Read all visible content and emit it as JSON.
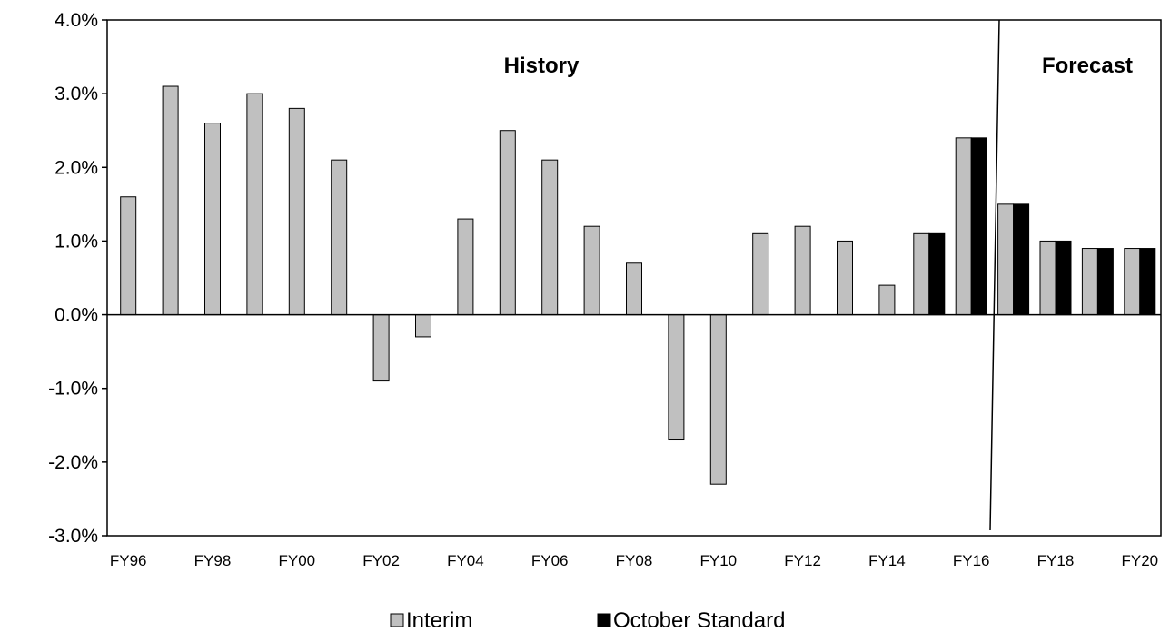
{
  "chart_data": {
    "type": "bar",
    "categories": [
      "FY96",
      "FY97",
      "FY98",
      "FY99",
      "FY00",
      "FY01",
      "FY02",
      "FY03",
      "FY04",
      "FY05",
      "FY06",
      "FY07",
      "FY08",
      "FY09",
      "FY10",
      "FY11",
      "FY12",
      "FY13",
      "FY14",
      "FY15",
      "FY16",
      "FY17",
      "FY18",
      "FY19",
      "FY20"
    ],
    "x_tick_labels": [
      "FY96",
      "FY98",
      "FY00",
      "FY02",
      "FY04",
      "FY06",
      "FY08",
      "FY10",
      "FY12",
      "FY14",
      "FY16",
      "FY18",
      "FY20"
    ],
    "series": [
      {
        "name": "Interim",
        "color": "#c0c0c0",
        "values": [
          1.6,
          3.1,
          2.6,
          3.0,
          2.8,
          2.1,
          -0.9,
          -0.3,
          1.3,
          2.5,
          2.1,
          1.2,
          0.7,
          -1.7,
          -2.3,
          1.1,
          1.2,
          1.0,
          0.4,
          1.1,
          2.4,
          1.5,
          1.0,
          0.9,
          0.9
        ]
      },
      {
        "name": "October Standard",
        "color": "#000000",
        "values": [
          null,
          null,
          null,
          null,
          null,
          null,
          null,
          null,
          null,
          null,
          null,
          null,
          null,
          null,
          null,
          null,
          null,
          null,
          null,
          1.1,
          2.4,
          1.5,
          1.0,
          0.9,
          0.9
        ]
      }
    ],
    "ylim": [
      -3.0,
      4.0
    ],
    "y_ticks": [
      4.0,
      3.0,
      2.0,
      1.0,
      0.0,
      -1.0,
      -2.0,
      -3.0
    ],
    "y_tick_labels": [
      "4.0%",
      "3.0%",
      "2.0%",
      "1.0%",
      "0.0%",
      "-1.0%",
      "-2.0%",
      "-3.0%"
    ],
    "annotations": [
      "History",
      "Forecast"
    ],
    "grid": false,
    "legend_position": "bottom-center"
  }
}
